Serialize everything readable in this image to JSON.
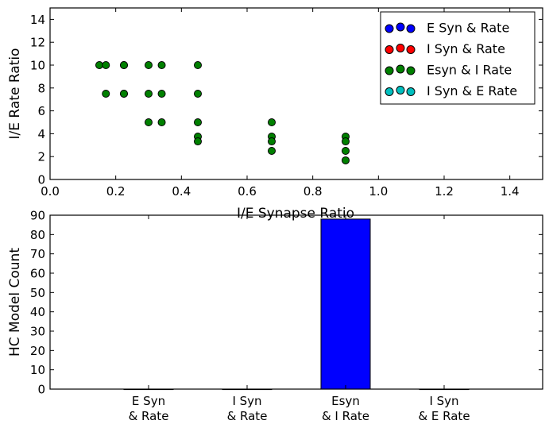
{
  "chart_data": [
    {
      "type": "scatter",
      "title": "",
      "xlabel": "I/E Synapse Ratio",
      "ylabel": "I/E Rate Ratio",
      "xlim": [
        0.0,
        1.5
      ],
      "ylim": [
        0,
        15
      ],
      "xticks": [
        "0.0",
        "0.2",
        "0.4",
        "0.6",
        "0.8",
        "1.0",
        "1.2",
        "1.4"
      ],
      "yticks": [
        "0",
        "2",
        "4",
        "6",
        "8",
        "10",
        "12",
        "14"
      ],
      "grid": false,
      "legend_position": "top-right",
      "series": [
        {
          "name": "E Syn & Rate",
          "color": "#0000ff",
          "points": []
        },
        {
          "name": "I Syn & Rate",
          "color": "#ff0000",
          "points": []
        },
        {
          "name": "Esyn & I Rate",
          "color": "#008000",
          "points": [
            [
              0.15,
              10
            ],
            [
              0.17,
              10
            ],
            [
              0.17,
              7.5
            ],
            [
              0.225,
              10
            ],
            [
              0.225,
              10
            ],
            [
              0.225,
              7.5
            ],
            [
              0.225,
              7.5
            ],
            [
              0.3,
              10
            ],
            [
              0.3,
              7.5
            ],
            [
              0.3,
              5
            ],
            [
              0.34,
              10
            ],
            [
              0.34,
              7.5
            ],
            [
              0.34,
              5
            ],
            [
              0.45,
              10
            ],
            [
              0.45,
              7.5
            ],
            [
              0.45,
              5
            ],
            [
              0.45,
              3.75
            ],
            [
              0.45,
              3.33
            ],
            [
              0.675,
              5
            ],
            [
              0.675,
              3.75
            ],
            [
              0.675,
              3.33
            ],
            [
              0.675,
              2.5
            ],
            [
              0.9,
              3.75
            ],
            [
              0.9,
              3.33
            ],
            [
              0.9,
              2.5
            ],
            [
              0.9,
              1.67
            ]
          ]
        },
        {
          "name": "I Syn & E Rate",
          "color": "#00bfbf",
          "points": []
        }
      ]
    },
    {
      "type": "bar",
      "title": "",
      "xlabel": "",
      "ylabel": "HC Model Count",
      "categories": [
        "E Syn\n& Rate",
        "I Syn\n& Rate",
        "Esyn\n& I Rate",
        "I Syn\n& E Rate"
      ],
      "values": [
        0,
        0,
        88,
        0
      ],
      "bar_color": "#0000ff",
      "ylim": [
        0,
        90
      ],
      "yticks": [
        "0",
        "10",
        "20",
        "30",
        "40",
        "50",
        "60",
        "70",
        "80",
        "90"
      ],
      "grid": false
    }
  ]
}
